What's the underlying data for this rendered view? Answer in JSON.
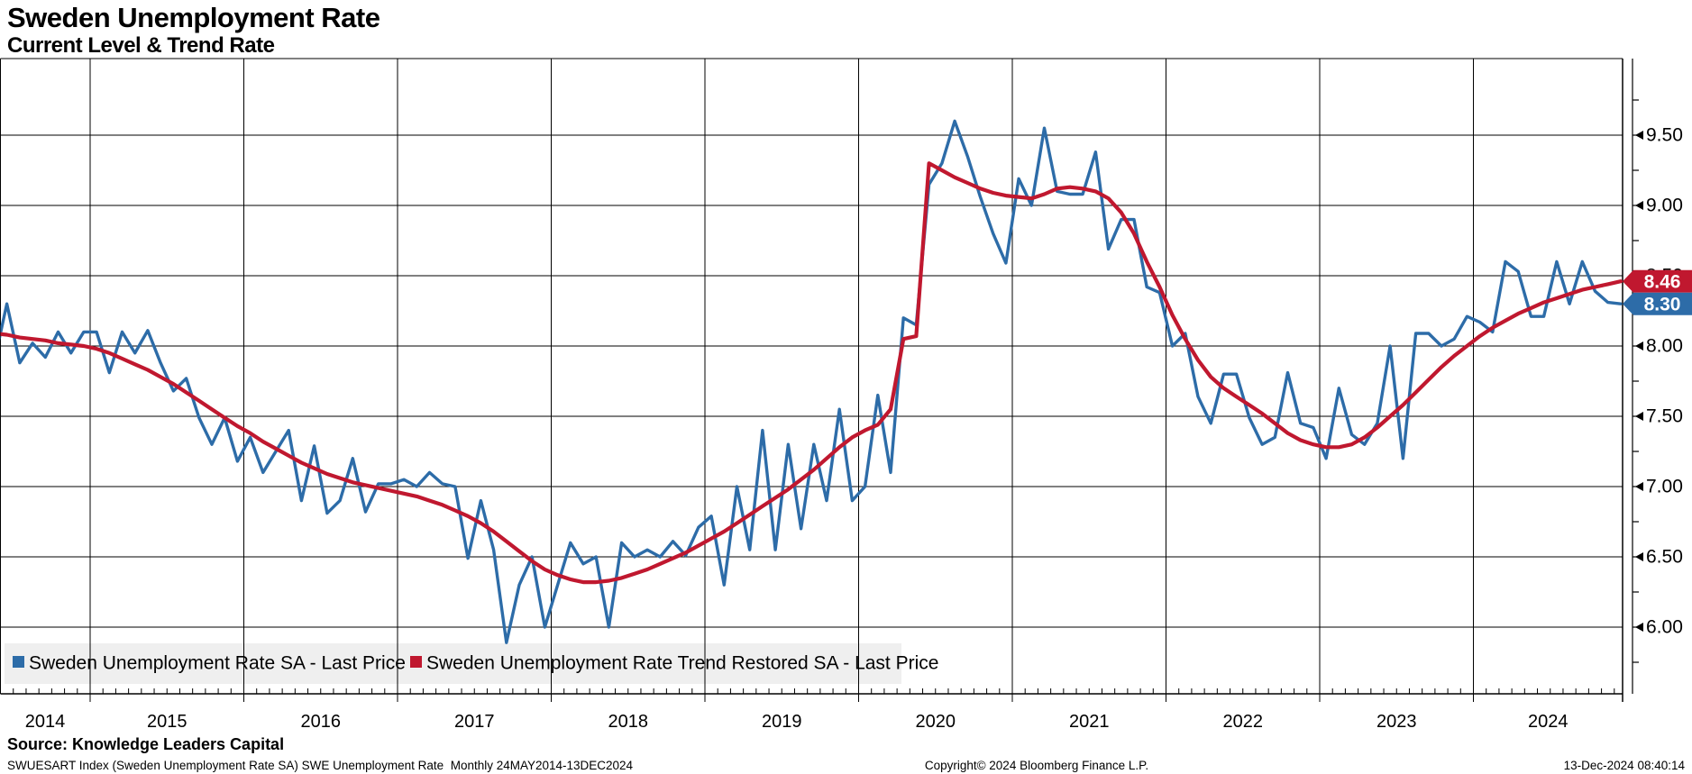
{
  "header": {
    "title": "Sweden Unemployment Rate",
    "subtitle": "Current Level & Trend Rate"
  },
  "chart_data": {
    "type": "line",
    "x_unit": "month",
    "x_start": "2014-05",
    "x_end": "2024-12",
    "grid": true,
    "x_axis_year_labels": [
      "2014",
      "2015",
      "2016",
      "2017",
      "2018",
      "2019",
      "2020",
      "2021",
      "2022",
      "2023",
      "2024"
    ],
    "y_axis": {
      "side": "right",
      "tick_labels": [
        "9.50",
        "9.00",
        "8.50",
        "8.00",
        "7.50",
        "7.00",
        "6.50",
        "6.00"
      ],
      "major_step": 0.5,
      "minor_step": 0.25,
      "top_value": 10.04,
      "bottom_value": 5.53
    },
    "series": [
      {
        "name": "Sweden Unemployment Rate SA - Last Price",
        "color": "#2d6ca8",
        "last_value": 8.3,
        "values": [
          7.88,
          8.3,
          7.88,
          8.02,
          7.92,
          8.1,
          7.95,
          8.1,
          8.1,
          7.81,
          8.1,
          7.95,
          8.11,
          7.88,
          7.68,
          7.77,
          7.49,
          7.3,
          7.49,
          7.18,
          7.35,
          7.1,
          7.25,
          7.4,
          6.9,
          7.29,
          6.81,
          6.9,
          7.2,
          6.82,
          7.02,
          7.02,
          7.05,
          7.0,
          7.1,
          7.02,
          7.0,
          6.49,
          6.9,
          6.55,
          5.89,
          6.3,
          6.5,
          6.0,
          6.3,
          6.6,
          6.45,
          6.5,
          6.0,
          6.6,
          6.5,
          6.55,
          6.5,
          6.61,
          6.51,
          6.71,
          6.79,
          6.3,
          7.0,
          6.55,
          7.4,
          6.55,
          7.3,
          6.7,
          7.3,
          6.9,
          7.55,
          6.9,
          7.0,
          7.65,
          7.1,
          8.2,
          8.15,
          9.15,
          9.3,
          9.6,
          9.35,
          9.06,
          8.8,
          8.59,
          9.19,
          9.0,
          9.55,
          9.1,
          9.08,
          9.08,
          9.38,
          8.69,
          8.9,
          8.9,
          8.42,
          8.38,
          8.0,
          8.09,
          7.64,
          7.45,
          7.8,
          7.8,
          7.49,
          7.3,
          7.35,
          7.81,
          7.45,
          7.42,
          7.2,
          7.7,
          7.37,
          7.3,
          7.45,
          8.0,
          7.2,
          8.09,
          8.09,
          8.0,
          8.05,
          8.21,
          8.17,
          8.1,
          8.6,
          8.53,
          8.21,
          8.21,
          8.6,
          8.3,
          8.6,
          8.39,
          8.31,
          8.3
        ]
      },
      {
        "name": "Sweden Unemployment Rate Trend Restored SA - Last Price",
        "color": "#c0182f",
        "last_value": 8.46,
        "values": [
          8.09,
          8.08,
          8.06,
          8.05,
          8.04,
          8.02,
          8.01,
          8.0,
          7.98,
          7.95,
          7.91,
          7.87,
          7.83,
          7.78,
          7.73,
          7.67,
          7.61,
          7.55,
          7.49,
          7.43,
          7.38,
          7.32,
          7.27,
          7.22,
          7.17,
          7.13,
          7.09,
          7.06,
          7.03,
          7.01,
          6.99,
          6.97,
          6.95,
          6.93,
          6.9,
          6.87,
          6.83,
          6.79,
          6.74,
          6.68,
          6.61,
          6.54,
          6.47,
          6.41,
          6.37,
          6.34,
          6.32,
          6.32,
          6.33,
          6.35,
          6.38,
          6.41,
          6.45,
          6.49,
          6.53,
          6.58,
          6.63,
          6.68,
          6.74,
          6.8,
          6.86,
          6.92,
          6.98,
          7.05,
          7.12,
          7.2,
          7.28,
          7.35,
          7.4,
          7.44,
          7.55,
          8.05,
          8.07,
          9.3,
          9.25,
          9.2,
          9.16,
          9.12,
          9.09,
          9.07,
          9.06,
          9.05,
          9.08,
          9.12,
          9.13,
          9.12,
          9.1,
          9.05,
          8.95,
          8.8,
          8.6,
          8.42,
          8.22,
          8.05,
          7.9,
          7.78,
          7.7,
          7.64,
          7.58,
          7.52,
          7.45,
          7.38,
          7.33,
          7.3,
          7.28,
          7.28,
          7.3,
          7.35,
          7.42,
          7.5,
          7.58,
          7.67,
          7.76,
          7.85,
          7.93,
          8.0,
          8.07,
          8.13,
          8.18,
          8.23,
          8.27,
          8.31,
          8.34,
          8.37,
          8.4,
          8.42,
          8.44,
          8.46
        ]
      }
    ],
    "legend": {
      "position": "inside-bottom-left",
      "background": "#efefef",
      "entries": [
        "Sweden Unemployment Rate SA - Last Price",
        "Sweden Unemployment Rate Trend Restored SA - Last Price"
      ]
    },
    "badges": [
      {
        "value": "8.46",
        "color": "#c0182f",
        "text_color": "#ffffff"
      },
      {
        "value": "8.30",
        "color": "#2d6ca8",
        "text_color": "#ffffff"
      }
    ]
  },
  "footer": {
    "source": "Source: Knowledge Leaders Capital",
    "left": "SWUESART Index (Sweden Unemployment Rate SA) SWE Unemployment Rate  Monthly 24MAY2014-13DEC2024",
    "center": "Copyright© 2024 Bloomberg Finance L.P.",
    "right": "13-Dec-2024 08:40:14"
  }
}
